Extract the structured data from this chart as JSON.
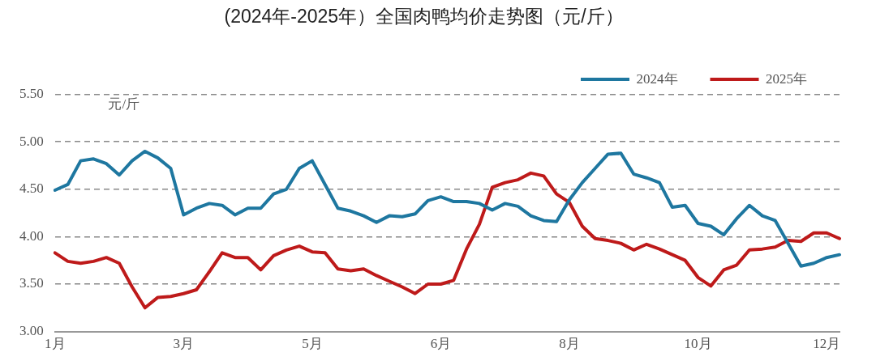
{
  "chart_data": {
    "type": "line",
    "title": "(2024年-2025年）全国肉鸭均价走势图（元/斤）",
    "ylabel": "元/斤",
    "categories": [
      "1月",
      null,
      null,
      null,
      null,
      null,
      null,
      null,
      null,
      null,
      "3月",
      null,
      null,
      null,
      null,
      null,
      null,
      null,
      null,
      null,
      "5月",
      null,
      null,
      null,
      null,
      null,
      null,
      null,
      null,
      null,
      "6月",
      null,
      null,
      null,
      null,
      null,
      null,
      null,
      null,
      null,
      "8月",
      null,
      null,
      null,
      null,
      null,
      null,
      null,
      null,
      null,
      "10月",
      null,
      null,
      null,
      null,
      null,
      null,
      null,
      null,
      null,
      "12月",
      null
    ],
    "series": [
      {
        "name": "2024年",
        "color": "#1e77a0",
        "values": [
          4.49,
          4.55,
          4.8,
          4.82,
          4.77,
          4.65,
          4.8,
          4.9,
          4.83,
          4.72,
          4.23,
          4.3,
          4.35,
          4.33,
          4.23,
          4.3,
          4.3,
          4.45,
          4.5,
          4.72,
          4.8,
          4.55,
          4.3,
          4.27,
          4.22,
          4.15,
          4.22,
          4.21,
          4.24,
          4.38,
          4.42,
          4.37,
          4.37,
          4.35,
          4.28,
          4.35,
          4.32,
          4.22,
          4.17,
          4.16,
          4.39,
          4.57,
          4.72,
          4.87,
          4.88,
          4.66,
          4.62,
          4.57,
          4.31,
          4.33,
          4.14,
          4.11,
          4.02,
          4.19,
          4.33,
          4.22,
          4.17,
          3.93,
          3.69,
          3.72,
          3.78,
          3.81
        ]
      },
      {
        "name": "2025年",
        "color": "#be1a1a",
        "values": [
          3.83,
          3.74,
          3.72,
          3.74,
          3.78,
          3.72,
          3.47,
          3.25,
          3.36,
          3.37,
          3.4,
          3.44,
          3.63,
          3.83,
          3.78,
          3.78,
          3.65,
          3.8,
          3.86,
          3.9,
          3.84,
          3.83,
          3.66,
          3.64,
          3.66,
          3.59,
          3.53,
          3.47,
          3.4,
          3.5,
          3.5,
          3.54,
          3.87,
          4.13,
          4.52,
          4.57,
          4.6,
          4.67,
          4.64,
          4.45,
          4.36,
          4.11,
          3.98,
          3.96,
          3.93,
          3.86,
          3.92,
          3.87,
          3.81,
          3.75,
          3.57,
          3.48,
          3.65,
          3.7,
          3.86,
          3.87,
          3.89,
          3.96,
          3.95,
          4.04,
          4.04,
          3.98
        ]
      }
    ],
    "ylim": [
      3,
      5.5
    ],
    "yticks": [
      {
        "value": 3,
        "label": "3.00"
      },
      {
        "value": 3.5,
        "label": "3.50"
      },
      {
        "value": 4,
        "label": "4.00"
      },
      {
        "value": 4.5,
        "label": "4.50"
      },
      {
        "value": 5,
        "label": "5.00"
      },
      {
        "value": 5.5,
        "label": "5.50"
      }
    ],
    "grid": "y",
    "legend": "top right",
    "marker": "none",
    "line_style": "solid"
  }
}
